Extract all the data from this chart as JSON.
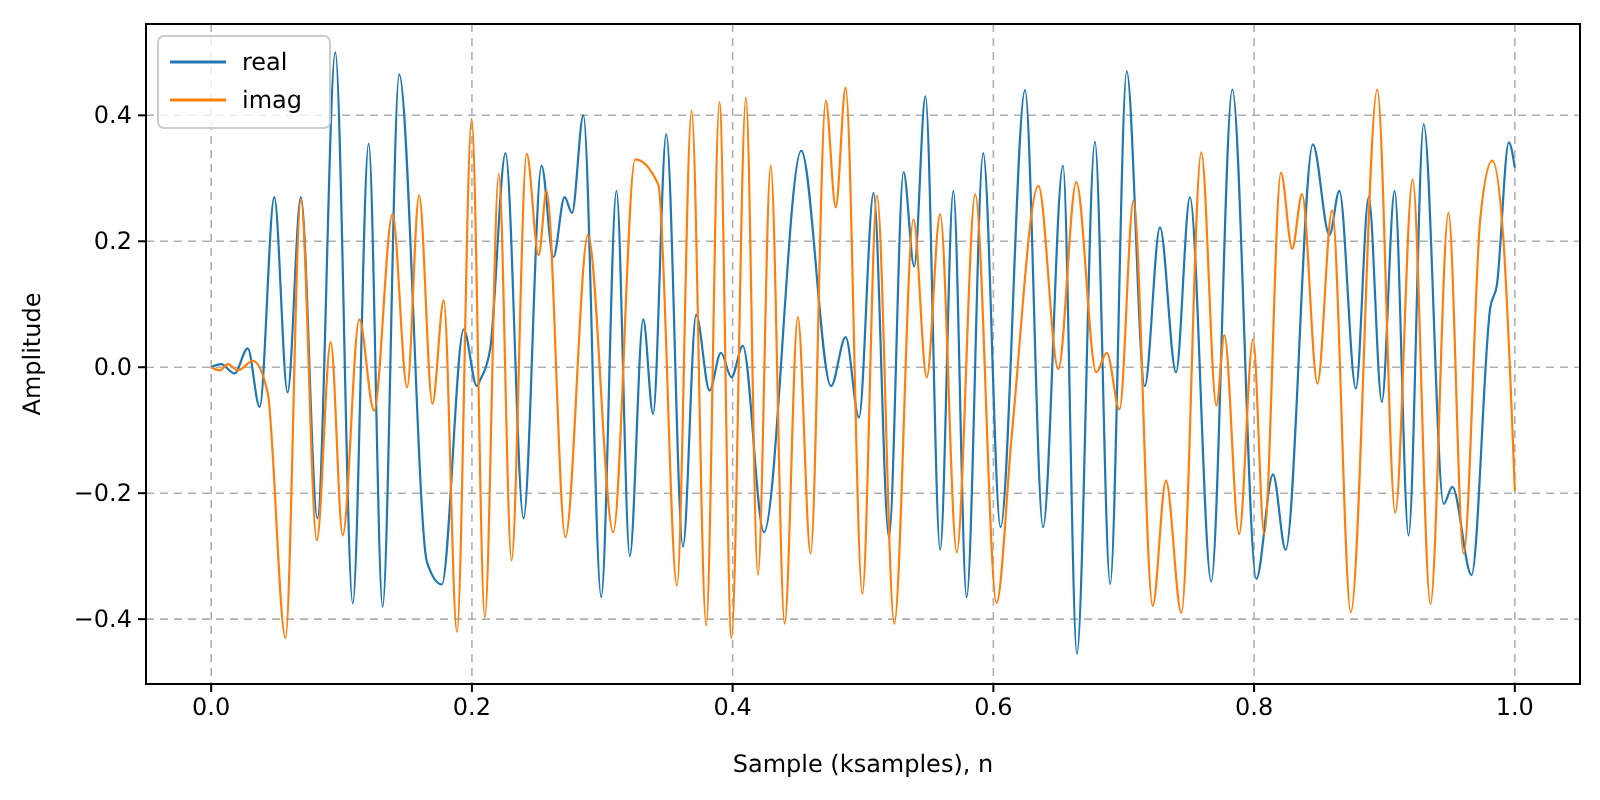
{
  "chart_data": {
    "type": "line",
    "xlabel": "Sample (ksamples), n",
    "ylabel": "Amplitude",
    "xlim": [
      -0.05,
      1.05
    ],
    "ylim": [
      -0.503,
      0.545
    ],
    "xticks": [
      {
        "value": 0,
        "label": "0.0"
      },
      {
        "value": 0.2,
        "label": "0.2"
      },
      {
        "value": 0.4,
        "label": "0.4"
      },
      {
        "value": 0.6,
        "label": "0.6"
      },
      {
        "value": 0.8,
        "label": "0.8"
      },
      {
        "value": 1,
        "label": "1.0"
      }
    ],
    "yticks": [
      {
        "value": -0.4,
        "label": "−0.4"
      },
      {
        "value": -0.2,
        "label": "−0.2"
      },
      {
        "value": 0,
        "label": "0.0"
      },
      {
        "value": 0.2,
        "label": "0.2"
      },
      {
        "value": 0.4,
        "label": "0.4"
      }
    ],
    "grid": true,
    "legend": "top left",
    "line_style": "solid",
    "marker": "none",
    "series": [
      {
        "name": "real",
        "color": "#1f77b4",
        "x": [
          0,
          0.0076,
          0.0179,
          0.028,
          0.0372,
          0.0484,
          0.0586,
          0.0688,
          0.0815,
          0.0952,
          0.1086,
          0.1208,
          0.1315,
          0.1442,
          0.1656,
          0.1769,
          0.1937,
          0.2038,
          0.2064,
          0.2141,
          0.2258,
          0.2396,
          0.2534,
          0.2625,
          0.2711,
          0.2768,
          0.2855,
          0.2992,
          0.3109,
          0.3211,
          0.3314,
          0.339,
          0.3491,
          0.3619,
          0.372,
          0.3823,
          0.391,
          0.3991,
          0.4078,
          0.424,
          0.4526,
          0.4755,
          0.4867,
          0.4969,
          0.5081,
          0.5199,
          0.5311,
          0.5393,
          0.5479,
          0.5592,
          0.5693,
          0.5795,
          0.5922,
          0.6055,
          0.6243,
          0.6381,
          0.6534,
          0.6641,
          0.6779,
          0.6896,
          0.7023,
          0.7161,
          0.7278,
          0.7401,
          0.7508,
          0.7671,
          0.7833,
          0.8017,
          0.8145,
          0.8242,
          0.8451,
          0.8578,
          0.8654,
          0.8781,
          0.8879,
          0.898,
          0.9078,
          0.9185,
          0.9301,
          0.9454,
          0.9521,
          0.9668,
          0.9812,
          0.9862,
          0.9954,
          1
        ],
        "values": [
          0,
          0.005,
          -0.01,
          0.03,
          -0.063,
          0.27,
          -0.04,
          0.27,
          -0.24,
          0.5,
          -0.375,
          0.355,
          -0.38,
          0.465,
          -0.31,
          -0.345,
          0.06,
          -0.03,
          -0.02,
          0.03,
          0.34,
          -0.24,
          0.32,
          0.175,
          0.27,
          0.245,
          0.4,
          -0.365,
          0.28,
          -0.3,
          0.076,
          -0.074,
          0.37,
          -0.285,
          0.083,
          -0.037,
          0.023,
          -0.016,
          0.034,
          -0.262,
          0.344,
          -0.03,
          0.048,
          -0.08,
          0.277,
          -0.27,
          0.31,
          0.16,
          0.43,
          -0.29,
          0.28,
          -0.365,
          0.34,
          -0.254,
          0.44,
          -0.254,
          0.32,
          -0.455,
          0.358,
          -0.344,
          0.47,
          -0.03,
          0.222,
          -0.008,
          0.27,
          -0.34,
          0.441,
          -0.336,
          -0.17,
          -0.29,
          0.354,
          0.21,
          0.28,
          -0.034,
          0.27,
          -0.055,
          0.28,
          -0.267,
          0.386,
          -0.217,
          -0.19,
          -0.33,
          0.095,
          0.13,
          0.357,
          0.317
        ]
      },
      {
        "name": "imag",
        "color": "#ff7f0e",
        "x": [
          0,
          0.0066,
          0.0127,
          0.0204,
          0.0321,
          0.0433,
          0.057,
          0.0688,
          0.081,
          0.0917,
          0.1009,
          0.1136,
          0.1249,
          0.1391,
          0.1503,
          0.1595,
          0.1697,
          0.1784,
          0.1885,
          0.1998,
          0.2099,
          0.2206,
          0.2304,
          0.242,
          0.2512,
          0.2573,
          0.2717,
          0.289,
          0.3084,
          0.3252,
          0.343,
          0.3573,
          0.3685,
          0.3797,
          0.3899,
          0.3991,
          0.4102,
          0.4194,
          0.4292,
          0.4399,
          0.45,
          0.4598,
          0.4714,
          0.4791,
          0.4867,
          0.4995,
          0.5107,
          0.524,
          0.5387,
          0.5489,
          0.5592,
          0.5719,
          0.5861,
          0.6024,
          0.6142,
          0.6346,
          0.6498,
          0.6636,
          0.6789,
          0.687,
          0.6968,
          0.7075,
          0.7222,
          0.7324,
          0.7442,
          0.7595,
          0.7711,
          0.7772,
          0.7885,
          0.7992,
          0.8078,
          0.8206,
          0.8292,
          0.8368,
          0.8486,
          0.8598,
          0.8742,
          0.8945,
          0.9083,
          0.9216,
          0.9353,
          0.9491,
          0.9607,
          0.9736,
          0.9827,
          0.9913,
          1
        ],
        "values": [
          0,
          -0.005,
          0.005,
          -0.005,
          0.01,
          -0.04,
          -0.43,
          0.267,
          -0.275,
          0.04,
          -0.267,
          0.076,
          -0.069,
          0.243,
          -0.032,
          0.273,
          -0.058,
          0.106,
          -0.42,
          0.394,
          -0.397,
          0.307,
          -0.307,
          0.339,
          0.178,
          0.28,
          -0.27,
          0.21,
          -0.262,
          0.33,
          0.29,
          -0.347,
          0.407,
          -0.41,
          0.421,
          -0.43,
          0.428,
          -0.33,
          0.32,
          -0.407,
          0.08,
          -0.296,
          0.423,
          0.254,
          0.444,
          -0.36,
          0.273,
          -0.407,
          0.235,
          -0.016,
          0.243,
          -0.294,
          0.275,
          -0.374,
          -0.106,
          0.288,
          -0.003,
          0.294,
          -0.008,
          0.023,
          -0.067,
          0.265,
          -0.379,
          -0.18,
          -0.39,
          0.341,
          -0.061,
          0.051,
          -0.265,
          0.044,
          -0.265,
          0.309,
          0.188,
          0.275,
          -0.026,
          0.249,
          -0.389,
          0.441,
          -0.231,
          0.298,
          -0.376,
          0.245,
          -0.296,
          0.238,
          0.328,
          0.201,
          -0.196
        ]
      }
    ]
  }
}
